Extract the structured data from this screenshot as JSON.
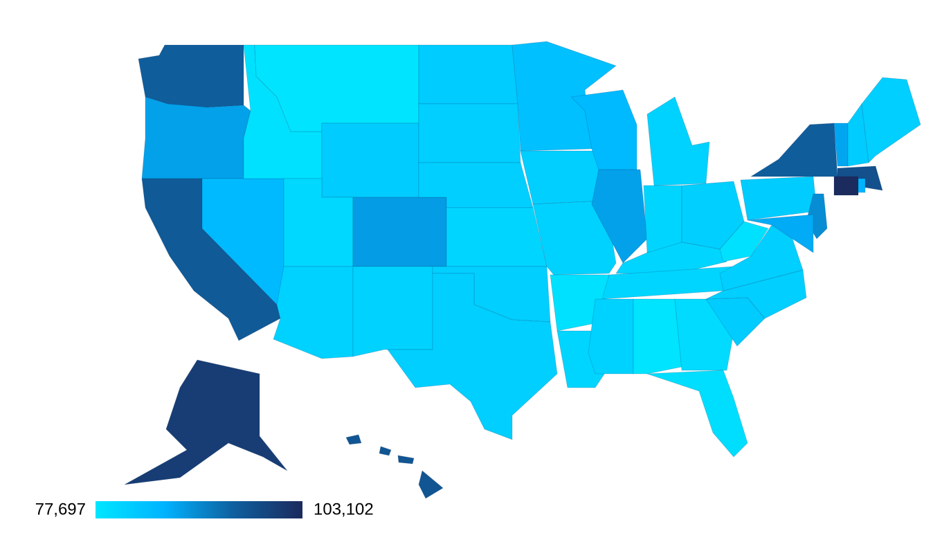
{
  "map": {
    "type": "choropleth",
    "regions": [
      95000,
      88000,
      95500,
      85000,
      78500,
      78000,
      82000,
      80000,
      88500,
      81000,
      81000,
      82000,
      81500,
      81500,
      80500,
      81500,
      81500,
      84000,
      81500,
      81000,
      78500,
      80500,
      85000,
      88000,
      81000,
      80500,
      81500,
      80500,
      80500,
      81000,
      78000,
      79500,
      79000,
      82000,
      81500,
      81500,
      78500,
      82000,
      95000,
      90000,
      87000,
      87500,
      82000,
      81500,
      97000,
      103000,
      86000,
      100000,
      96000
    ],
    "colorscale": [
      "#00e6ff",
      "#00b3ff",
      "#0f5f9e",
      "#1c2a5c"
    ],
    "legend": {
      "min": {
        "value": 77697,
        "label": "77,697"
      },
      "max": {
        "value": 103102,
        "label": "103,102"
      }
    }
  }
}
